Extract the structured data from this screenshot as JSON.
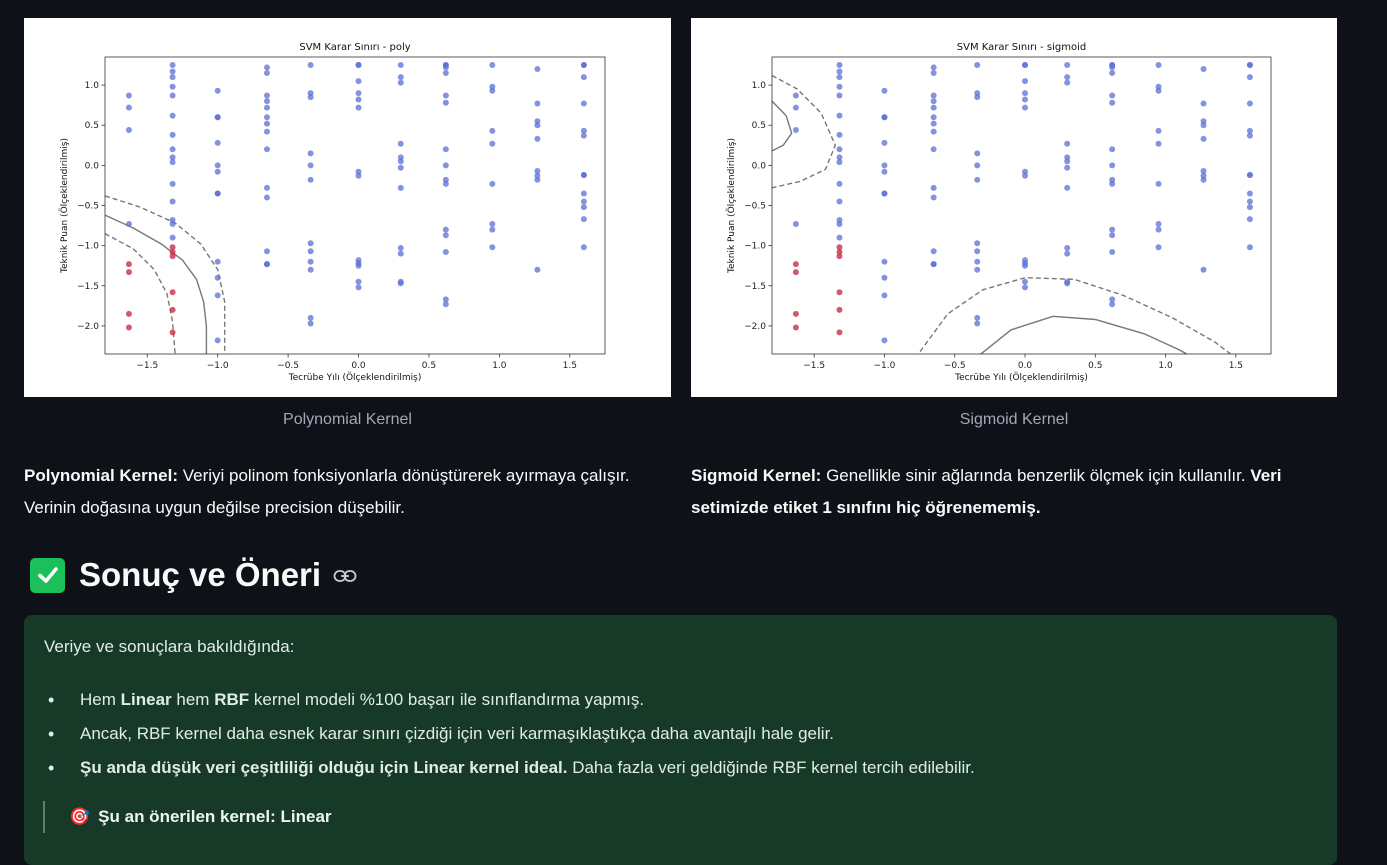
{
  "plots": [
    {
      "title": "SVM Karar Sınırı - poly",
      "xlabel": "Tecrübe Yılı (Ölçeklendirilmiş)",
      "ylabel": "Teknik Puan (Ölçeklendirilmiş)",
      "caption": "Polynomial Kernel"
    },
    {
      "title": "SVM Karar Sınırı - sigmoid",
      "xlabel": "Tecrübe Yılı (Ölçeklendirilmiş)",
      "ylabel": "Teknik Puan (Ölçeklendirilmiş)",
      "caption": "Sigmoid Kernel"
    }
  ],
  "chart_data": [
    {
      "type": "scatter",
      "title": "SVM Karar Sınırı - poly",
      "xlabel": "Tecrübe Yılı (Ölçeklendirilmiş)",
      "ylabel": "Teknik Puan (Ölçeklendirilmiş)",
      "xlim": [
        -1.8,
        1.75
      ],
      "ylim": [
        -2.35,
        1.35
      ],
      "xticks": [
        "−1.5",
        "−1.0",
        "−0.5",
        "0.0",
        "0.5",
        "1.0",
        "1.5"
      ],
      "yticks": [
        "1.0",
        "0.5",
        "0.0",
        "−0.5",
        "−1.0",
        "−1.5",
        "−2.0"
      ],
      "grid": false,
      "boundary": "poly"
    },
    {
      "type": "scatter",
      "title": "SVM Karar Sınırı - sigmoid",
      "xlabel": "Tecrübe Yılı (Ölçeklendirilmiş)",
      "ylabel": "Teknik Puan (Ölçeklendirilmiş)",
      "xlim": [
        -1.8,
        1.75
      ],
      "ylim": [
        -2.35,
        1.35
      ],
      "xticks": [
        "−1.5",
        "−1.0",
        "−0.5",
        "0.0",
        "0.5",
        "1.0",
        "1.5"
      ],
      "yticks": [
        "1.0",
        "0.5",
        "0.0",
        "−0.5",
        "−1.0",
        "−1.5",
        "−2.0"
      ],
      "grid": false,
      "boundary": "sigmoid"
    }
  ],
  "colors": {
    "class0": "#5b6fd6",
    "class1": "#c9304a",
    "boundary": "#777777",
    "success_bg": "#173928",
    "check_green": "#1dbf5b"
  },
  "points": {
    "class1": [
      [
        -1.63,
        -1.23
      ],
      [
        -1.63,
        -1.33
      ],
      [
        -1.63,
        -1.85
      ],
      [
        -1.63,
        -2.02
      ],
      [
        -1.32,
        -1.02
      ],
      [
        -1.32,
        -1.08
      ],
      [
        -1.32,
        -1.13
      ],
      [
        -1.32,
        -1.58
      ],
      [
        -1.32,
        -1.8
      ],
      [
        -1.32,
        -2.08
      ]
    ],
    "columns": [
      {
        "x": -1.63,
        "ys": [
          0.87,
          0.72,
          0.44,
          -0.73
        ]
      },
      {
        "x": -1.32,
        "ys": [
          1.25,
          1.17,
          1.1,
          0.98,
          0.87,
          0.62,
          0.38,
          0.2,
          0.1,
          0.04,
          -0.23,
          -0.45,
          -0.68,
          -0.73,
          -0.9
        ]
      },
      {
        "x": -1.0,
        "ys": [
          0.93,
          0.6,
          0.6,
          0.28,
          0.0,
          -0.08,
          -0.35,
          -0.35,
          -1.2,
          -1.4,
          -1.62,
          -2.18
        ]
      },
      {
        "x": -0.65,
        "ys": [
          1.22,
          1.15,
          0.87,
          0.8,
          0.72,
          0.6,
          0.52,
          0.42,
          0.2,
          -0.28,
          -0.4,
          -1.07,
          -1.23,
          -1.23
        ]
      },
      {
        "x": -0.34,
        "ys": [
          1.25,
          0.9,
          0.85,
          0.15,
          0.0,
          -0.18,
          -0.97,
          -1.07,
          -1.2,
          -1.3,
          -1.9,
          -1.97
        ]
      },
      {
        "x": 0.0,
        "ys": [
          1.25,
          1.25,
          1.05,
          0.9,
          0.82,
          0.72,
          -0.08,
          -0.13,
          -1.18,
          -1.22,
          -1.25,
          -1.45,
          -1.52
        ]
      },
      {
        "x": 0.3,
        "ys": [
          1.25,
          1.1,
          1.03,
          0.27,
          0.1,
          0.05,
          -0.03,
          -0.28,
          -1.03,
          -1.1,
          -1.45,
          -1.47
        ]
      },
      {
        "x": 0.62,
        "ys": [
          1.25,
          1.25,
          1.22,
          1.15,
          0.87,
          0.78,
          0.2,
          0.0,
          -0.18,
          -0.23,
          -0.8,
          -0.87,
          -1.08,
          -1.67,
          -1.73
        ]
      },
      {
        "x": 0.95,
        "ys": [
          1.25,
          0.98,
          0.93,
          0.43,
          0.27,
          -0.23,
          -0.73,
          -0.8,
          -1.02
        ]
      },
      {
        "x": 1.27,
        "ys": [
          1.2,
          0.77,
          0.55,
          0.5,
          0.33,
          -0.07,
          -0.13,
          -0.18,
          -1.3
        ]
      },
      {
        "x": 1.6,
        "ys": [
          1.25,
          1.25,
          1.1,
          0.77,
          0.43,
          0.37,
          -0.12,
          -0.12,
          -0.35,
          -0.45,
          -0.52,
          -0.67,
          -1.02
        ]
      }
    ]
  },
  "descriptions": {
    "left_bold": "Polynomial Kernel:",
    "left_text": " Veriyi polinom fonksiyonlarla dönüştürerek ayırmaya çalışır. Verinin doğasına uygun değilse precision düşebilir.",
    "right_bold": "Sigmoid Kernel:",
    "right_text": " Genellikle sinir ağlarında benzerlik ölçmek için kullanılır. ",
    "right_bold_end": "Veri setimizde etiket 1 sınıfını hiç öğrenememiş."
  },
  "section": {
    "icon": "check-box-icon",
    "title": "Sonuç ve Öneri",
    "link_icon": "link-icon"
  },
  "panel": {
    "intro": "Veriye ve sonuçlara bakıldığında:",
    "items": [
      {
        "a": "Hem ",
        "b1": "Linear",
        "c": " hem ",
        "b2": "RBF",
        "d": " kernel modeli %100 başarı ile sınıflandırma yapmış."
      },
      {
        "text": "Ancak, RBF kernel daha esnek karar sınırı çizdiği için veri karmaşıklaştıkça daha avantajlı hale gelir."
      },
      {
        "bold": "Şu anda düşük veri çeşitliliği olduğu için Linear kernel ideal.",
        "text": " Daha fazla veri geldiğinde RBF kernel tercih edilebilir."
      }
    ],
    "quote_icon": "🎯",
    "quote": "Şu an önerilen kernel: Linear"
  }
}
